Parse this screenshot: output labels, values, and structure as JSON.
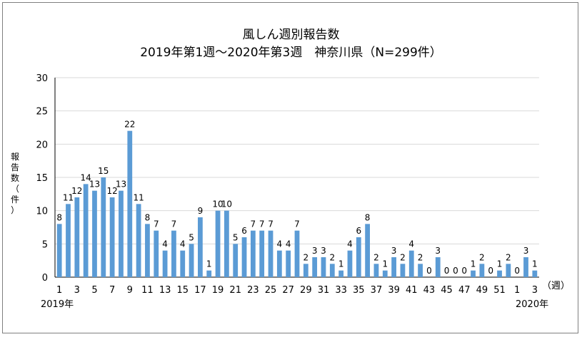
{
  "chart_data": {
    "type": "bar",
    "title": "風しん週別報告数",
    "subtitle": "2019年第1週～2020年第3週　神奈川県（N=299件）",
    "ylabel": "報告数（件）",
    "x_unit": "（週）",
    "year_start_label": "2019年",
    "year_end_label": "2020年",
    "ylim": [
      0,
      30
    ],
    "yticks": [
      0,
      5,
      10,
      15,
      20,
      25,
      30
    ],
    "grid": true,
    "bar_color": "#5b9bd5",
    "categories": [
      "1",
      "2",
      "3",
      "4",
      "5",
      "6",
      "7",
      "8",
      "9",
      "10",
      "11",
      "12",
      "13",
      "14",
      "15",
      "16",
      "17",
      "18",
      "19",
      "20",
      "21",
      "22",
      "23",
      "24",
      "25",
      "26",
      "27",
      "28",
      "29",
      "30",
      "31",
      "32",
      "33",
      "34",
      "35",
      "36",
      "37",
      "38",
      "39",
      "40",
      "41",
      "42",
      "43",
      "44",
      "45",
      "46",
      "47",
      "48",
      "49",
      "50",
      "51",
      "52",
      "1",
      "2",
      "3"
    ],
    "values": [
      8,
      11,
      12,
      14,
      13,
      15,
      12,
      13,
      22,
      11,
      8,
      7,
      4,
      7,
      4,
      5,
      9,
      1,
      10,
      10,
      5,
      6,
      7,
      7,
      7,
      4,
      4,
      7,
      2,
      3,
      3,
      2,
      1,
      4,
      6,
      8,
      2,
      1,
      3,
      2,
      4,
      2,
      0,
      3,
      0,
      0,
      0,
      1,
      2,
      0,
      1,
      2,
      0,
      3,
      1
    ],
    "x_tick_labels": [
      "1",
      "",
      "3",
      "",
      "5",
      "",
      "7",
      "",
      "9",
      "",
      "11",
      "",
      "13",
      "",
      "15",
      "",
      "17",
      "",
      "19",
      "",
      "21",
      "",
      "23",
      "",
      "25",
      "",
      "27",
      "",
      "29",
      "",
      "31",
      "",
      "33",
      "",
      "35",
      "",
      "37",
      "",
      "39",
      "",
      "41",
      "",
      "43",
      "",
      "45",
      "",
      "47",
      "",
      "49",
      "",
      "51",
      "",
      "1",
      "",
      "3"
    ]
  }
}
